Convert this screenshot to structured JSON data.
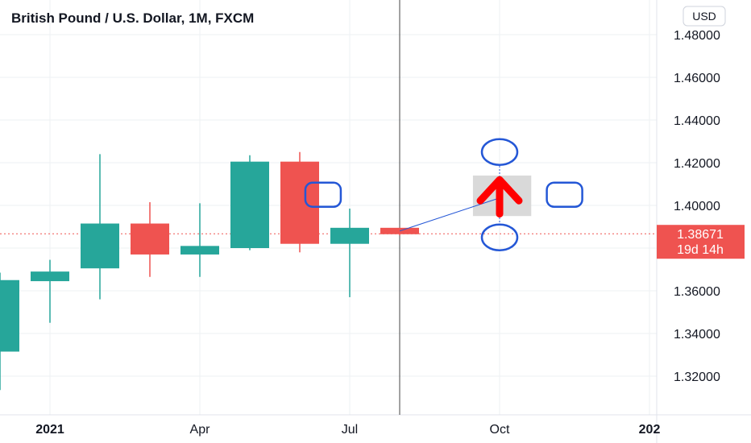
{
  "chart_title": "British Pound / U.S. Dollar, 1M, FXCM",
  "currency_label": "USD",
  "colors": {
    "up": "#26a69a",
    "down": "#ef5350",
    "grid": "#eef0f3",
    "axis_text": "#131722",
    "price_line": "#ef5350",
    "annotation_blue": "#2457d6",
    "arrow_red": "#ff0000",
    "highlight_gray": "#d9d9d9",
    "crosshair": "#444444"
  },
  "chart_data": {
    "type": "candlestick",
    "title": "British Pound / U.S. Dollar, 1M, FXCM",
    "ylim": [
      1.305,
      1.49
    ],
    "y_ticks": [
      "1.48000",
      "1.46000",
      "1.44000",
      "1.42000",
      "1.40000",
      "1.36000",
      "1.34000",
      "1.32000"
    ],
    "y_tick_values": [
      1.48,
      1.46,
      1.44,
      1.42,
      1.4,
      1.36,
      1.34,
      1.32
    ],
    "x_ticks": [
      {
        "label": "2021",
        "at": "2021-01",
        "bold": true
      },
      {
        "label": "Apr",
        "at": "2021-04",
        "bold": false
      },
      {
        "label": "Jul",
        "at": "2021-07",
        "bold": false
      },
      {
        "label": "Oct",
        "at": "2021-10",
        "bold": false
      },
      {
        "label": "202",
        "at": "2022-01",
        "bold": true
      }
    ],
    "months": [
      "2020-12",
      "2021-01",
      "2021-02",
      "2021-03",
      "2021-04",
      "2021-05",
      "2021-06",
      "2021-07",
      "2021-08",
      "2021-09",
      "2021-10",
      "2021-11",
      "2021-12",
      "2022-01"
    ],
    "candles": [
      {
        "date": "2020-12",
        "open": 1.3315,
        "high": 1.3685,
        "low": 1.3135,
        "close": 1.365
      },
      {
        "date": "2021-01",
        "open": 1.3645,
        "high": 1.3745,
        "low": 1.345,
        "close": 1.369
      },
      {
        "date": "2021-02",
        "open": 1.3705,
        "high": 1.424,
        "low": 1.356,
        "close": 1.3915
      },
      {
        "date": "2021-03",
        "open": 1.3915,
        "high": 1.4015,
        "low": 1.3665,
        "close": 1.377
      },
      {
        "date": "2021-04",
        "open": 1.377,
        "high": 1.401,
        "low": 1.3665,
        "close": 1.381
      },
      {
        "date": "2021-05",
        "open": 1.38,
        "high": 1.4235,
        "low": 1.379,
        "close": 1.4205
      },
      {
        "date": "2021-06",
        "open": 1.4205,
        "high": 1.425,
        "low": 1.378,
        "close": 1.382
      },
      {
        "date": "2021-07",
        "open": 1.382,
        "high": 1.3985,
        "low": 1.357,
        "close": 1.3895
      },
      {
        "date": "2021-08",
        "open": 1.3895,
        "high": 1.3895,
        "low": 1.386,
        "close": 1.3865
      }
    ],
    "last_price": {
      "value": 1.38671,
      "label": "1.38671",
      "countdown": "19d 14h"
    },
    "crosshair_month": "2021-08",
    "annotations": {
      "trend_line": {
        "from": {
          "date": "2021-08",
          "price": 1.388
        },
        "to": {
          "date": "2021-10",
          "price": 1.4035
        }
      },
      "highlight_box": {
        "date_from": "2021-09-15",
        "date_to": "2021-10-20",
        "price_top": 1.414,
        "price_bottom": 1.395
      },
      "arrow": {
        "date": "2021-10",
        "price_tip": 1.412,
        "price_base": 1.396
      },
      "targets": [
        {
          "shape": "ellipse",
          "date": "2021-10",
          "price": 1.425
        },
        {
          "shape": "ellipse",
          "date": "2021-10",
          "price": 1.385
        },
        {
          "shape": "rounded-rect",
          "date": "2021-06-15",
          "price": 1.405
        },
        {
          "shape": "rounded-rect",
          "date": "2021-11-10",
          "price": 1.405
        }
      ]
    }
  }
}
